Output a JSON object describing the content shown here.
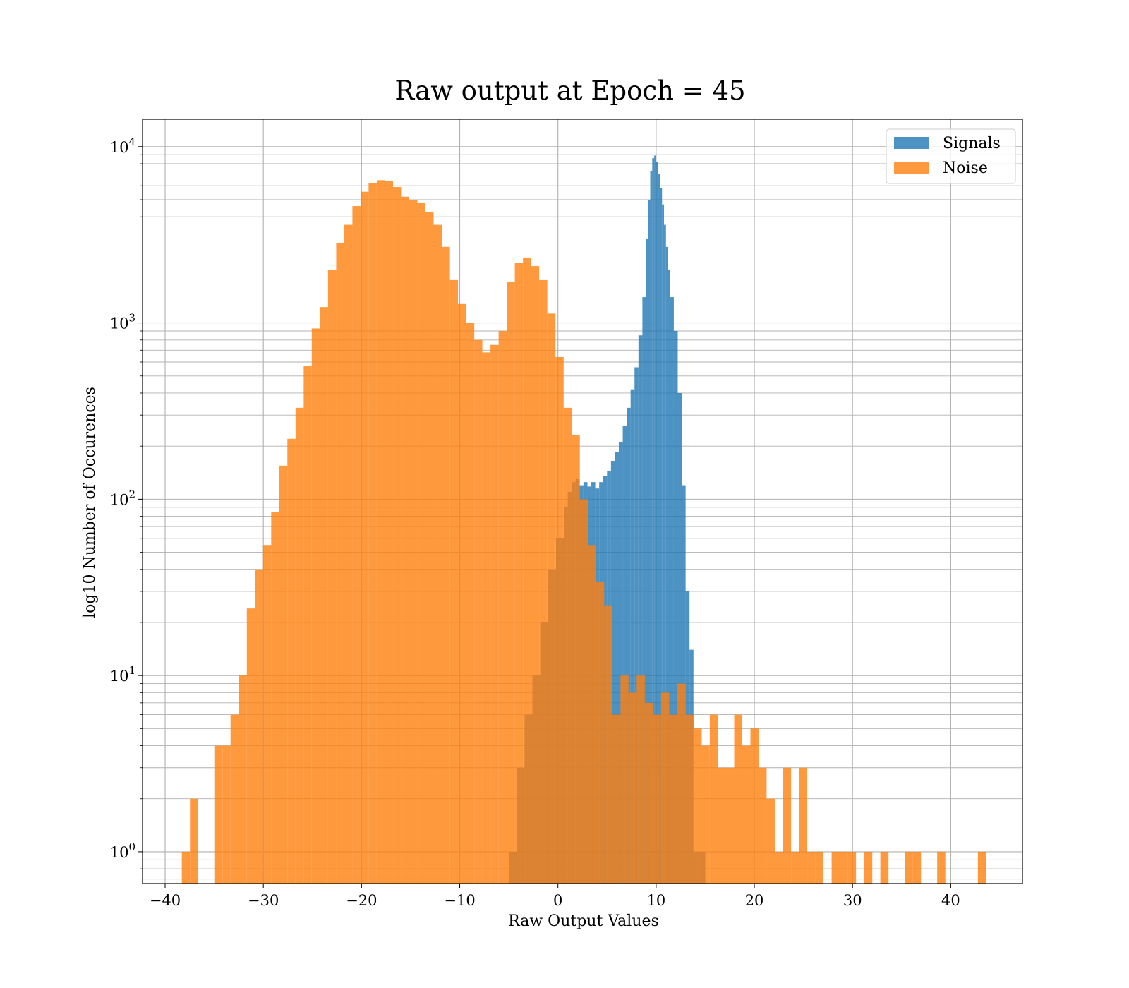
{
  "chart_data": {
    "type": "bar",
    "title": "Raw output at Epoch = 45",
    "xlabel": "Raw Output Values",
    "ylabel": "log10 Number of Occurences",
    "xlim": [
      -42.3,
      47.3
    ],
    "ylim": [
      0.66,
      14300
    ],
    "yscale": "log",
    "grid": true,
    "grid_minor_y": true,
    "legend_position": "top-right",
    "x_ticks": [
      -40,
      -30,
      -20,
      -10,
      0,
      10,
      20,
      30,
      40
    ],
    "x_tick_labels": [
      "−40",
      "−30",
      "−20",
      "−10",
      "0",
      "10",
      "20",
      "30",
      "40"
    ],
    "y_ticks": [
      {
        "value": 1,
        "base": "10",
        "exp": "0"
      },
      {
        "value": 10,
        "base": "10",
        "exp": "1"
      },
      {
        "value": 100,
        "base": "10",
        "exp": "2"
      },
      {
        "value": 1000,
        "base": "10",
        "exp": "3"
      },
      {
        "value": 10000,
        "base": "10",
        "exp": "4"
      }
    ],
    "series": [
      {
        "name": "Signals",
        "color": "#1f77b4",
        "alpha": 0.8,
        "bin_edges": [
          -5,
          -4.2,
          -3.4,
          -2.6,
          -1.8,
          -1.0,
          -0.2,
          0.6,
          1.0,
          1.4,
          1.8,
          2.2,
          2.6,
          3.0,
          3.4,
          3.8,
          4.2,
          4.6,
          5.0,
          5.4,
          5.8,
          6.2,
          6.6,
          7.0,
          7.4,
          7.8,
          8.2,
          8.6,
          9.0,
          9.2,
          9.4,
          9.6,
          9.8,
          10.0,
          10.2,
          10.4,
          10.6,
          10.8,
          11.0,
          11.2,
          11.4,
          11.8,
          12.2,
          12.6,
          13.0,
          13.4,
          13.8,
          14.2,
          14.6,
          15.0
        ],
        "counts": [
          1,
          3,
          6,
          10,
          20,
          40,
          60,
          90,
          110,
          125,
          130,
          120,
          125,
          118,
          125,
          115,
          125,
          135,
          145,
          165,
          185,
          210,
          260,
          330,
          420,
          560,
          850,
          1400,
          3000,
          5000,
          7300,
          8600,
          8900,
          8200,
          7000,
          5800,
          4700,
          3600,
          2700,
          2000,
          1400,
          900,
          400,
          120,
          30,
          14,
          1,
          1,
          1
        ]
      },
      {
        "name": "Noise",
        "color": "#ff7f0e",
        "alpha": 0.8,
        "bin_edges": [
          -38.3,
          -37.47,
          -36.65,
          -35.82,
          -34.99,
          -34.16,
          -33.34,
          -32.51,
          -31.68,
          -30.86,
          -30.03,
          -29.2,
          -28.37,
          -27.55,
          -26.72,
          -25.89,
          -25.07,
          -24.24,
          -23.41,
          -22.58,
          -21.76,
          -20.93,
          -20.1,
          -19.28,
          -18.45,
          -17.62,
          -16.79,
          -15.97,
          -15.14,
          -14.31,
          -13.49,
          -12.66,
          -11.83,
          -11.0,
          -10.18,
          -9.35,
          -8.52,
          -7.7,
          -6.87,
          -6.04,
          -5.21,
          -4.39,
          -3.56,
          -2.73,
          -1.91,
          -1.08,
          -0.25,
          0.58,
          1.4,
          2.23,
          3.06,
          3.88,
          4.71,
          5.54,
          6.37,
          7.19,
          8.02,
          8.85,
          9.67,
          10.5,
          11.33,
          12.16,
          12.98,
          13.81,
          14.64,
          15.46,
          16.29,
          17.12,
          17.95,
          18.77,
          19.6,
          20.43,
          21.25,
          22.08,
          22.91,
          23.74,
          24.56,
          25.39,
          26.22,
          27.04,
          27.87,
          28.7,
          29.53,
          30.35,
          31.18,
          32.01,
          32.83,
          33.66,
          34.49,
          35.32,
          36.14,
          36.97,
          37.8,
          38.62,
          39.45,
          40.28,
          41.11,
          41.93,
          42.76,
          43.59
        ],
        "counts": [
          1,
          2,
          0,
          0,
          4,
          4,
          6,
          10,
          24,
          40,
          55,
          85,
          155,
          220,
          330,
          570,
          930,
          1230,
          2000,
          2850,
          3600,
          4600,
          5550,
          6200,
          6450,
          6400,
          5900,
          5200,
          5000,
          4800,
          4250,
          3600,
          2700,
          1750,
          1280,
          1000,
          800,
          680,
          750,
          900,
          1700,
          2200,
          2350,
          2100,
          1750,
          1130,
          640,
          330,
          230,
          100,
          55,
          34,
          25,
          6,
          10,
          8,
          10,
          7,
          6,
          8,
          6,
          9,
          6,
          5,
          4,
          6,
          3,
          3,
          6,
          4,
          5,
          3,
          2,
          1,
          3,
          1,
          3,
          1,
          1,
          0,
          1,
          1,
          1,
          0,
          1,
          0,
          1,
          0,
          0,
          1,
          1,
          0,
          0,
          1,
          0,
          0,
          0,
          0,
          1
        ]
      }
    ]
  }
}
